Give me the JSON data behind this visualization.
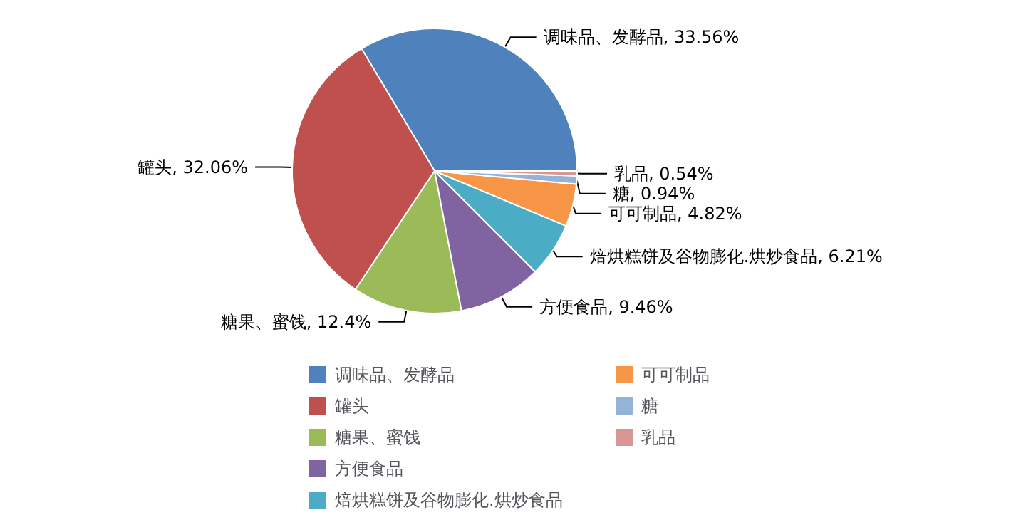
{
  "chart_data": {
    "type": "pie",
    "categories": [
      "调味品、发酵品",
      "罐头",
      "糖果、蜜饯",
      "方便食品",
      "焙烘糕饼及谷物膨化.烘炒食品",
      "可可制品",
      "糖",
      "乳品"
    ],
    "values": [
      33.56,
      32.06,
      12.4,
      9.46,
      6.21,
      4.82,
      0.94,
      0.54
    ],
    "colors": [
      "#4f81bd",
      "#c0504d",
      "#9bbb59",
      "#8064a2",
      "#4bacc6",
      "#f79646",
      "#95b3d7",
      "#d99694"
    ],
    "value_labels": [
      ", 33.56%",
      ", 32.06%",
      ", 12.4%",
      ", 9.46%",
      ", 6.21%",
      ", 4.82%",
      ", 0.94%",
      ", 0.54%"
    ],
    "legend": "bottom"
  }
}
